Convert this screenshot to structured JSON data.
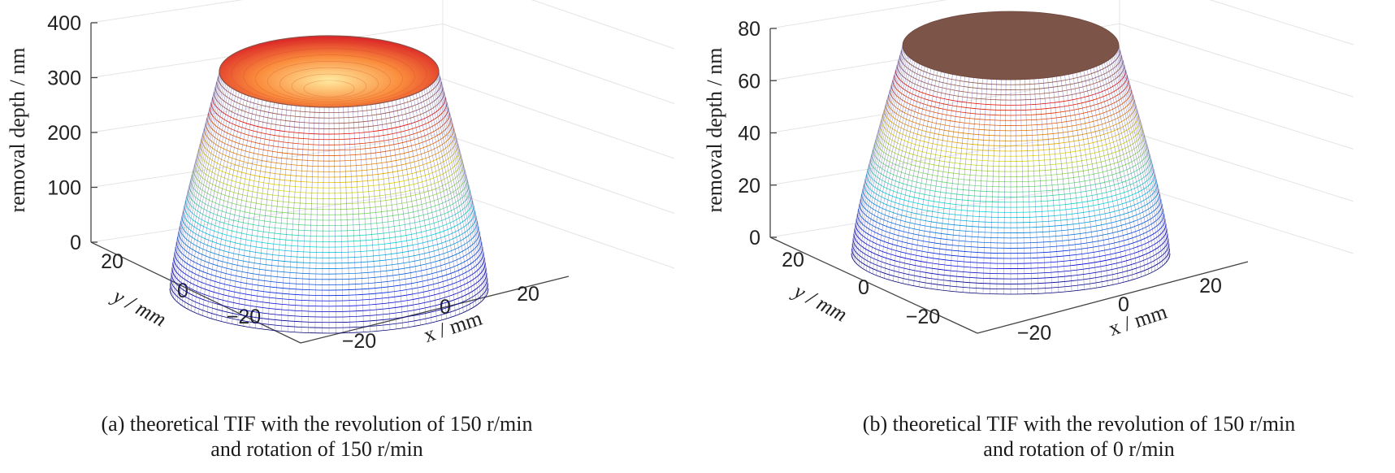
{
  "chart_data": [
    {
      "type": "surface3d",
      "panel": "a",
      "caption_lines": [
        "(a) theoretical TIF with the revolution of 150 r/min",
        "and rotation of 150 r/min"
      ],
      "zlabel": "removal depth / nm",
      "xlabel": "x / mm",
      "ylabel": "y / mm",
      "zlim": [
        0,
        400
      ],
      "zticks": [
        "0",
        "100",
        "200",
        "300",
        "400"
      ],
      "xticks": [
        "−20",
        "0",
        "20"
      ],
      "yticks": [
        "−20",
        "0",
        "20"
      ],
      "radius_mm": 30,
      "top_radius_mm": 22,
      "rim_depth_nm": 330,
      "center_depth_nm": 240,
      "colormap": "jet"
    },
    {
      "type": "surface3d",
      "panel": "b",
      "caption_lines": [
        "(b) theoretical TIF with the revolution of 150 r/min",
        "and rotation of 0 r/min"
      ],
      "zlabel": "removal depth / nm",
      "xlabel": "x / mm",
      "ylabel": "y / mm",
      "zlim": [
        0,
        80
      ],
      "zticks": [
        "0",
        "20",
        "40",
        "60",
        "80"
      ],
      "xticks": [
        "−20",
        "0",
        "20"
      ],
      "yticks": [
        "−20",
        "0",
        "20"
      ],
      "radius_mm": 30,
      "top_radius_mm": 20,
      "rim_depth_nm": 85,
      "center_depth_nm": 85,
      "colormap": "jet"
    }
  ]
}
